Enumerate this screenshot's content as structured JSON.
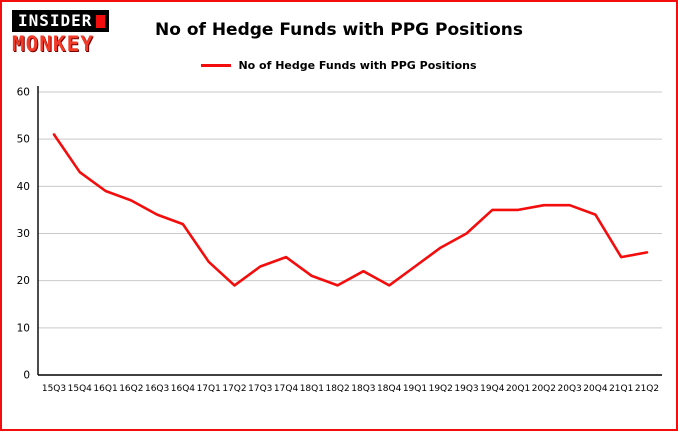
{
  "logo": {
    "line1": "INSIDER",
    "line2": "MONKEY"
  },
  "header": {
    "title": "No of Hedge Funds with PPG Positions"
  },
  "legend": {
    "label": "No of Hedge Funds with PPG Positions"
  },
  "colors": {
    "line": "#f30d0d",
    "border": "#f30d0d",
    "grid": "#c9c9c9",
    "axis": "#000000",
    "text": "#000000"
  },
  "chart_data": {
    "type": "line",
    "title": "No of Hedge Funds with PPG Positions",
    "xlabel": "",
    "ylabel": "",
    "ylim": [
      0,
      60
    ],
    "yticks": [
      0,
      10,
      20,
      30,
      40,
      50,
      60
    ],
    "grid": "horizontal",
    "legend_position": "top",
    "categories": [
      "15Q3",
      "15Q4",
      "16Q1",
      "16Q2",
      "16Q3",
      "16Q4",
      "17Q1",
      "17Q2",
      "17Q3",
      "17Q4",
      "18Q1",
      "18Q2",
      "18Q3",
      "18Q4",
      "19Q1",
      "19Q2",
      "19Q3",
      "19Q4",
      "20Q1",
      "20Q2",
      "20Q3",
      "20Q4",
      "21Q1",
      "21Q2"
    ],
    "series": [
      {
        "name": "No of Hedge Funds with PPG Positions",
        "values": [
          51,
          43,
          39,
          37,
          34,
          32,
          24,
          19,
          23,
          25,
          21,
          19,
          22,
          19,
          23,
          27,
          30,
          35,
          35,
          36,
          36,
          34,
          25,
          26
        ]
      }
    ]
  }
}
